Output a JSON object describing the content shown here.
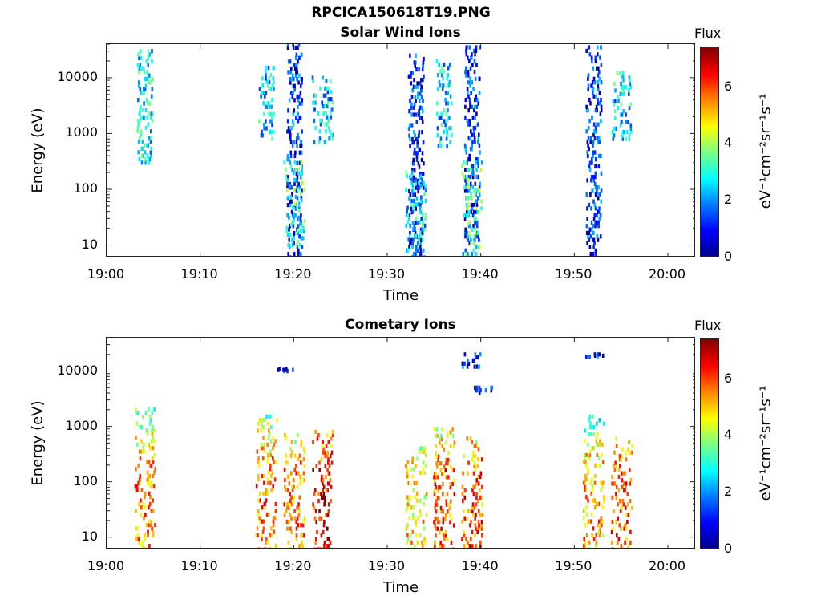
{
  "figure_title": "RPCICA150618T19.PNG",
  "colors": {
    "colormap": "jet"
  },
  "chart_data": [
    {
      "type": "heatmap",
      "title": "Solar Wind Ions",
      "xlabel": "Time",
      "ylabel": "Energy (eV)",
      "x_tick_labels": [
        "19:00",
        "19:10",
        "19:20",
        "19:30",
        "19:40",
        "19:50",
        "20:00"
      ],
      "x_range": [
        "19:00",
        "20:03"
      ],
      "y_scale": "log",
      "y_tick_labels": [
        "10",
        "100",
        "1000",
        "10000"
      ],
      "y_range": [
        6,
        40000
      ],
      "colorbar": {
        "title": "Flux",
        "label": "eV⁻¹cm⁻²sr⁻¹s⁻¹",
        "range": [
          0,
          7.4
        ],
        "tick_labels": [
          "0",
          "2",
          "4",
          "6"
        ]
      },
      "clusters": [
        {
          "t": "19:04",
          "emin": 300,
          "emax": 30000,
          "flux": 2.6
        },
        {
          "t": "19:17",
          "emin": 800,
          "emax": 15000,
          "flux": 2.4
        },
        {
          "t": "19:20",
          "emin": 6,
          "emax": 40000,
          "flux": 1.2
        },
        {
          "t": "19:20",
          "emin": 10,
          "emax": 300,
          "flux": 3.2
        },
        {
          "t": "19:23",
          "emin": 700,
          "emax": 10000,
          "flux": 2.4
        },
        {
          "t": "19:33",
          "emin": 6,
          "emax": 25000,
          "flux": 1.2
        },
        {
          "t": "19:33",
          "emin": 6,
          "emax": 200,
          "flux": 2.6
        },
        {
          "t": "19:36",
          "emin": 600,
          "emax": 20000,
          "flux": 2.4
        },
        {
          "t": "19:39",
          "emin": 6,
          "emax": 35000,
          "flux": 1.2
        },
        {
          "t": "19:39",
          "emin": 6,
          "emax": 300,
          "flux": 3.2
        },
        {
          "t": "19:52",
          "emin": 6,
          "emax": 35000,
          "flux": 1.2
        },
        {
          "t": "19:55",
          "emin": 800,
          "emax": 12000,
          "flux": 2.5
        }
      ]
    },
    {
      "type": "heatmap",
      "title": "Cometary Ions",
      "xlabel": "Time",
      "ylabel": "Energy (eV)",
      "x_tick_labels": [
        "19:00",
        "19:10",
        "19:20",
        "19:30",
        "19:40",
        "19:50",
        "20:00"
      ],
      "x_range": [
        "19:00",
        "20:03"
      ],
      "y_scale": "log",
      "y_tick_labels": [
        "10",
        "100",
        "1000",
        "10000"
      ],
      "y_range": [
        6,
        40000
      ],
      "colorbar": {
        "title": "Flux",
        "label": "eV⁻¹cm⁻²sr⁻¹s⁻¹",
        "range": [
          0,
          7.4
        ],
        "tick_labels": [
          "0",
          "2",
          "4",
          "6"
        ]
      },
      "clusters": [
        {
          "t": "19:04",
          "emin": 6,
          "emax": 2000,
          "flux": 5.5
        },
        {
          "t": "19:17",
          "emin": 6,
          "emax": 1500,
          "flux": 5.8
        },
        {
          "t": "19:20",
          "emin": 6,
          "emax": 700,
          "flux": 5.6
        },
        {
          "t": "19:23",
          "emin": 6,
          "emax": 800,
          "flux": 6.6
        },
        {
          "t": "19:33",
          "emin": 6,
          "emax": 400,
          "flux": 4.8
        },
        {
          "t": "19:36",
          "emin": 6,
          "emax": 900,
          "flux": 5.8
        },
        {
          "t": "19:39",
          "emin": 6,
          "emax": 600,
          "flux": 5.8
        },
        {
          "t": "19:52",
          "emin": 6,
          "emax": 1500,
          "flux": 5.2
        },
        {
          "t": "19:55",
          "emin": 6,
          "emax": 600,
          "flux": 5.8
        },
        {
          "t": "19:19",
          "emin": 10000,
          "emax": 11000,
          "flux": 1.0
        },
        {
          "t": "19:39",
          "emin": 12000,
          "emax": 20000,
          "flux": 1.0
        },
        {
          "t": "19:52",
          "emin": 18000,
          "emax": 20000,
          "flux": 1.0
        },
        {
          "t": "19:40",
          "emin": 4000,
          "emax": 5000,
          "flux": 1.0
        }
      ]
    }
  ]
}
